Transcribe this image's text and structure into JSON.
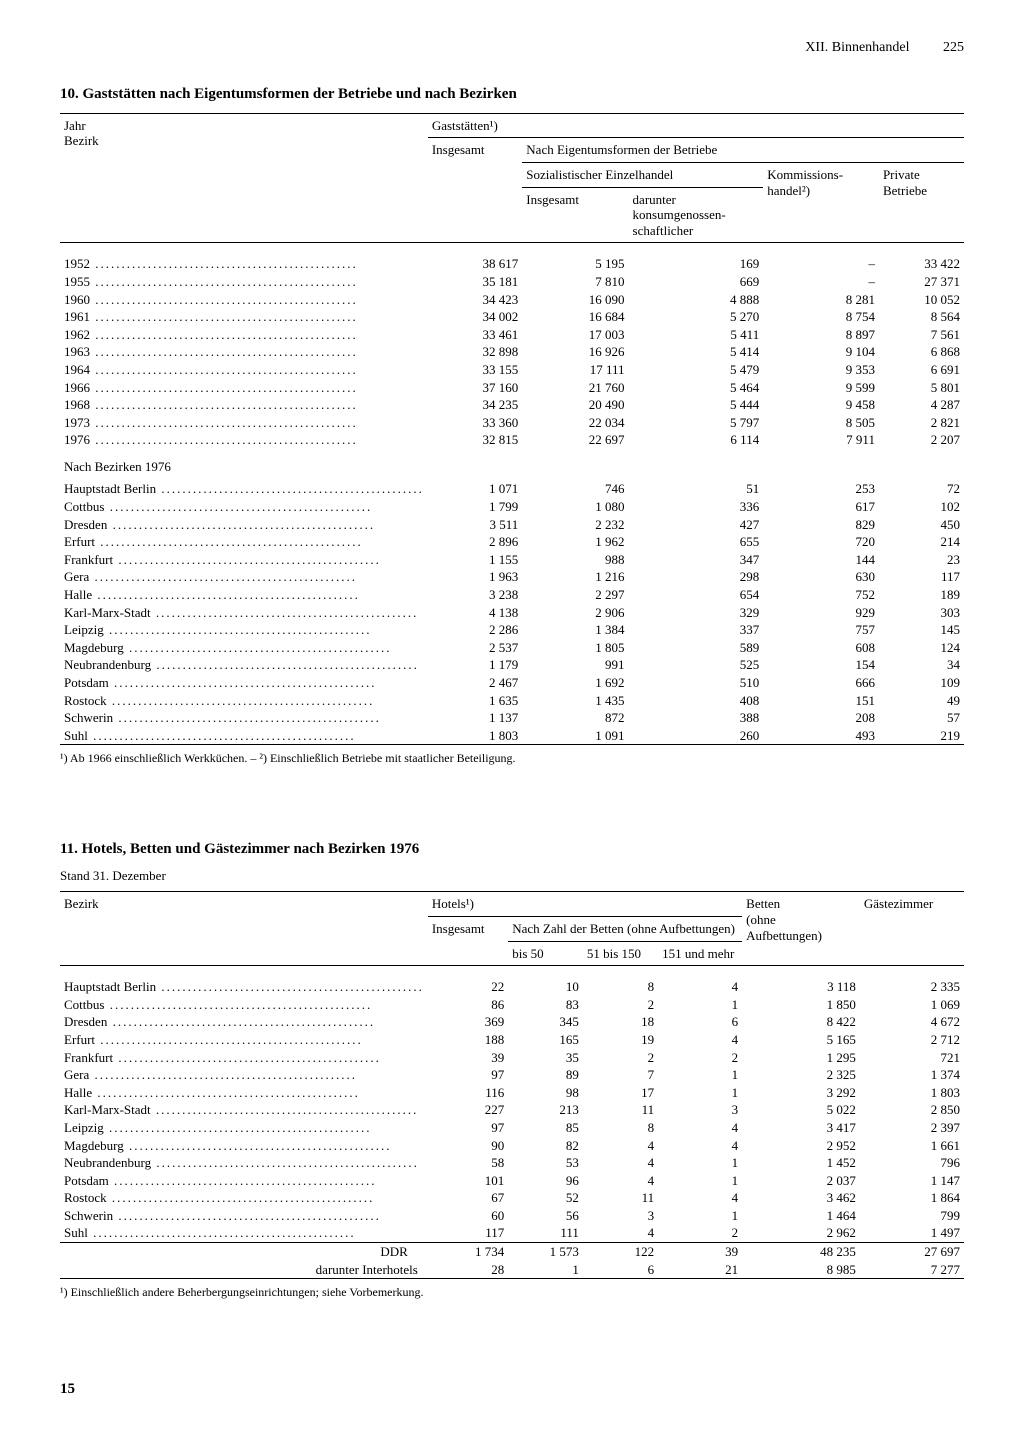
{
  "header": {
    "chapter": "XII. Binnenhandel",
    "page": "225"
  },
  "table1": {
    "title": "10. Gaststätten nach Eigentumsformen der Betriebe und nach Bezirken",
    "col_labels": {
      "c0a": "Jahr",
      "c0b": "Bezirk",
      "c_top": "Gaststätten¹)",
      "c1": "Insgesamt",
      "c_mid": "Nach Eigentumsformen der Betriebe",
      "c_soz": "Sozialistischer Einzelhandel",
      "c2": "Insgesamt",
      "c3a": "darunter",
      "c3b": "konsumgenossen-",
      "c3c": "schaftlicher",
      "c4a": "Kommissions-",
      "c4b": "handel²)",
      "c5a": "Private",
      "c5b": "Betriebe"
    },
    "years": [
      {
        "y": "1952",
        "v": [
          "38 617",
          "5 195",
          "169",
          "–",
          "33 422"
        ]
      },
      {
        "y": "1955",
        "v": [
          "35 181",
          "7 810",
          "669",
          "–",
          "27 371"
        ]
      },
      {
        "y": "1960",
        "v": [
          "34 423",
          "16 090",
          "4 888",
          "8 281",
          "10 052"
        ]
      },
      {
        "y": "1961",
        "v": [
          "34 002",
          "16 684",
          "5 270",
          "8 754",
          "8 564"
        ]
      },
      {
        "y": "1962",
        "v": [
          "33 461",
          "17 003",
          "5 411",
          "8 897",
          "7 561"
        ]
      },
      {
        "y": "1963",
        "v": [
          "32 898",
          "16 926",
          "5 414",
          "9 104",
          "6 868"
        ]
      },
      {
        "y": "1964",
        "v": [
          "33 155",
          "17 111",
          "5 479",
          "9 353",
          "6 691"
        ]
      },
      {
        "y": "1966",
        "v": [
          "37 160",
          "21 760",
          "5 464",
          "9 599",
          "5 801"
        ]
      },
      {
        "y": "1968",
        "v": [
          "34 235",
          "20 490",
          "5 444",
          "9 458",
          "4 287"
        ]
      },
      {
        "y": "1973",
        "v": [
          "33 360",
          "22 034",
          "5 797",
          "8 505",
          "2 821"
        ]
      },
      {
        "y": "1976",
        "v": [
          "32 815",
          "22 697",
          "6 114",
          "7 911",
          "2 207"
        ]
      }
    ],
    "bezirke_label": "Nach Bezirken 1976",
    "bezirke": [
      {
        "n": "Hauptstadt Berlin",
        "v": [
          "1 071",
          "746",
          "51",
          "253",
          "72"
        ]
      },
      {
        "n": "Cottbus",
        "v": [
          "1 799",
          "1 080",
          "336",
          "617",
          "102"
        ]
      },
      {
        "n": "Dresden",
        "v": [
          "3 511",
          "2 232",
          "427",
          "829",
          "450"
        ]
      },
      {
        "n": "Erfurt",
        "v": [
          "2 896",
          "1 962",
          "655",
          "720",
          "214"
        ]
      },
      {
        "n": "Frankfurt",
        "v": [
          "1 155",
          "988",
          "347",
          "144",
          "23"
        ]
      },
      {
        "n": "Gera",
        "v": [
          "1 963",
          "1 216",
          "298",
          "630",
          "117"
        ]
      },
      {
        "n": "Halle",
        "v": [
          "3 238",
          "2 297",
          "654",
          "752",
          "189"
        ]
      },
      {
        "n": "Karl-Marx-Stadt",
        "v": [
          "4 138",
          "2 906",
          "329",
          "929",
          "303"
        ]
      },
      {
        "n": "Leipzig",
        "v": [
          "2 286",
          "1 384",
          "337",
          "757",
          "145"
        ]
      },
      {
        "n": "Magdeburg",
        "v": [
          "2 537",
          "1 805",
          "589",
          "608",
          "124"
        ]
      },
      {
        "n": "Neubrandenburg",
        "v": [
          "1 179",
          "991",
          "525",
          "154",
          "34"
        ]
      },
      {
        "n": "Potsdam",
        "v": [
          "2 467",
          "1 692",
          "510",
          "666",
          "109"
        ]
      },
      {
        "n": "Rostock",
        "v": [
          "1 635",
          "1 435",
          "408",
          "151",
          "49"
        ]
      },
      {
        "n": "Schwerin",
        "v": [
          "1 137",
          "872",
          "388",
          "208",
          "57"
        ]
      },
      {
        "n": "Suhl",
        "v": [
          "1 803",
          "1 091",
          "260",
          "493",
          "219"
        ]
      }
    ],
    "footnote": "¹) Ab 1966 einschließlich Werkküchen. – ²) Einschließlich Betriebe mit staatlicher Beteiligung."
  },
  "table2": {
    "title": "11. Hotels, Betten und Gästezimmer nach Bezirken 1976",
    "subtitle": "Stand 31. Dezember",
    "col_labels": {
      "c0": "Bezirk",
      "c_hotels": "Hotels¹)",
      "c1": "Insgesamt",
      "c_range": "Nach Zahl der Betten (ohne Aufbettungen)",
      "c2": "bis 50",
      "c3": "51 bis 150",
      "c4": "151 und mehr",
      "c5a": "Betten",
      "c5b": "(ohne",
      "c5c": "Aufbettungen)",
      "c6": "Gästezimmer"
    },
    "rows": [
      {
        "n": "Hauptstadt Berlin",
        "v": [
          "22",
          "10",
          "8",
          "4",
          "3 118",
          "2 335"
        ]
      },
      {
        "n": "Cottbus",
        "v": [
          "86",
          "83",
          "2",
          "1",
          "1 850",
          "1 069"
        ]
      },
      {
        "n": "Dresden",
        "v": [
          "369",
          "345",
          "18",
          "6",
          "8 422",
          "4 672"
        ]
      },
      {
        "n": "Erfurt",
        "v": [
          "188",
          "165",
          "19",
          "4",
          "5 165",
          "2 712"
        ]
      },
      {
        "n": "Frankfurt",
        "v": [
          "39",
          "35",
          "2",
          "2",
          "1 295",
          "721"
        ]
      },
      {
        "n": "Gera",
        "v": [
          "97",
          "89",
          "7",
          "1",
          "2 325",
          "1 374"
        ]
      },
      {
        "n": "Halle",
        "v": [
          "116",
          "98",
          "17",
          "1",
          "3 292",
          "1 803"
        ]
      },
      {
        "n": "Karl-Marx-Stadt",
        "v": [
          "227",
          "213",
          "11",
          "3",
          "5 022",
          "2 850"
        ]
      },
      {
        "n": "Leipzig",
        "v": [
          "97",
          "85",
          "8",
          "4",
          "3 417",
          "2 397"
        ]
      },
      {
        "n": "Magdeburg",
        "v": [
          "90",
          "82",
          "4",
          "4",
          "2 952",
          "1 661"
        ]
      },
      {
        "n": "Neubrandenburg",
        "v": [
          "58",
          "53",
          "4",
          "1",
          "1 452",
          "796"
        ]
      },
      {
        "n": "Potsdam",
        "v": [
          "101",
          "96",
          "4",
          "1",
          "2 037",
          "1 147"
        ]
      },
      {
        "n": "Rostock",
        "v": [
          "67",
          "52",
          "11",
          "4",
          "3 462",
          "1 864"
        ]
      },
      {
        "n": "Schwerin",
        "v": [
          "60",
          "56",
          "3",
          "1",
          "1 464",
          "799"
        ]
      },
      {
        "n": "Suhl",
        "v": [
          "117",
          "111",
          "4",
          "2",
          "2 962",
          "1 497"
        ]
      }
    ],
    "total": {
      "n": "DDR",
      "v": [
        "1 734",
        "1 573",
        "122",
        "39",
        "48 235",
        "27 697"
      ]
    },
    "inter": {
      "n": "darunter Interhotels",
      "v": [
        "28",
        "1",
        "6",
        "21",
        "8 985",
        "7 277"
      ]
    },
    "footnote": "¹) Einschließlich andere Beherbergungseinrichtungen; siehe Vorbemerkung."
  },
  "bottom_page": "15"
}
